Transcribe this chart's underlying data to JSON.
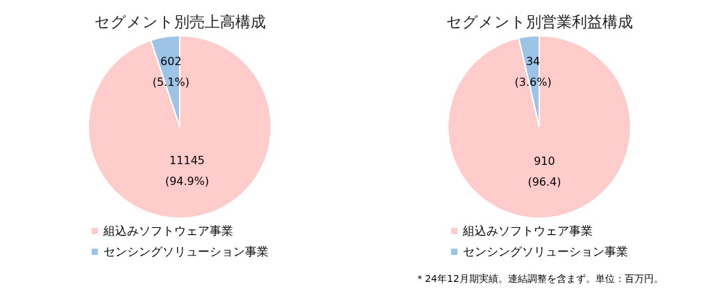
{
  "chart_data": [
    {
      "type": "pie",
      "title": "セグメント別売上高構成",
      "categories": [
        "組込みソフトウェア事業",
        "センシングソリューション事業"
      ],
      "values": [
        11145,
        602
      ],
      "colors": [
        "#ffcccc",
        "#9dc3e6"
      ],
      "value_labels": [
        "11145\n(94.9%)",
        "602\n(5.1%)"
      ],
      "legend": "bottom"
    },
    {
      "type": "pie",
      "title": "セグメント別営業利益構成",
      "categories": [
        "組込みソフトウェア事業",
        "センシングソリューション事業"
      ],
      "values": [
        910,
        34
      ],
      "colors": [
        "#ffcccc",
        "#9dc3e6"
      ],
      "value_labels": [
        "910\n(96.4)",
        "34\n(3.6%)"
      ],
      "legend": "bottom",
      "annotations": [
        "＊24年12月期実績。連結調整を含まず。単位：百万円。"
      ]
    }
  ]
}
